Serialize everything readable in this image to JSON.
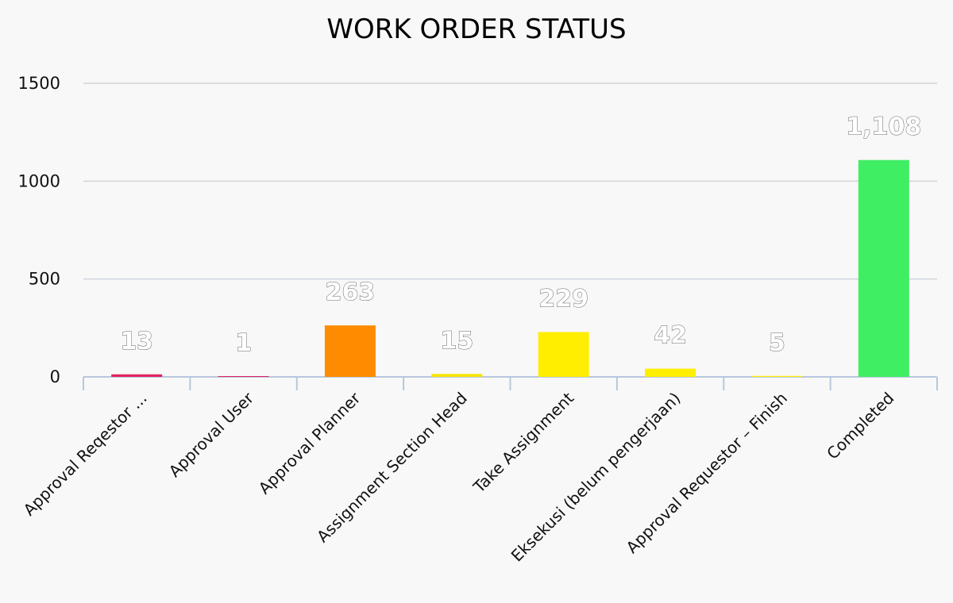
{
  "chart_data": {
    "type": "bar",
    "title": "WORK ORDER STATUS",
    "xlabel": "",
    "ylabel": "",
    "ylim": [
      0,
      1500
    ],
    "yticks": [
      0,
      500,
      1000,
      1500
    ],
    "grid": true,
    "legend": "none",
    "categories": [
      "Approval Reqestor ...",
      "Approval User",
      "Approval Planner",
      "Assignment Section Head",
      "Take Assignment",
      "Eksekusi (belum pengerjaan)",
      "Approval Requestor – Finish",
      "Completed"
    ],
    "values": [
      13,
      1,
      263,
      15,
      229,
      42,
      5,
      1108
    ],
    "value_labels": [
      "13",
      "1",
      "263",
      "15",
      "229",
      "42",
      "5",
      "1,108"
    ],
    "colors": [
      "#e0245e",
      "#e0245e",
      "#ff8c00",
      "#f7e500",
      "#ffee00",
      "#ffee00",
      "#ffee00",
      "#40ee63"
    ]
  }
}
